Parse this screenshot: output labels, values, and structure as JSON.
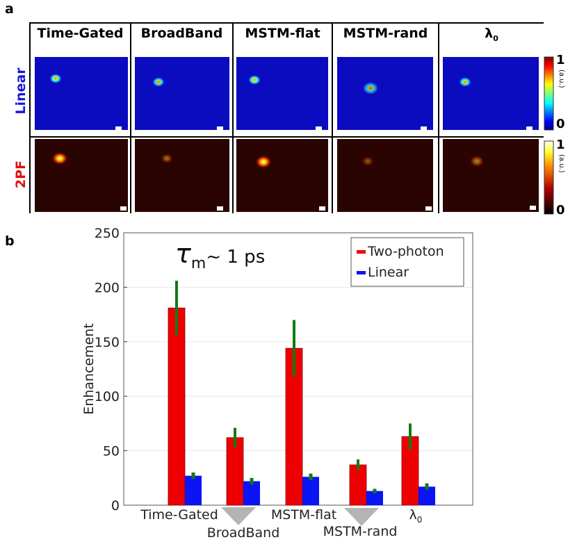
{
  "panel_a": {
    "letter": "a",
    "columns": [
      "Time-Gated",
      "BroadBand",
      "MSTM-flat",
      "MSTM-rand"
    ],
    "last_column_symbol": "λ",
    "last_column_subscript": "0",
    "rows": [
      {
        "label": "Linear",
        "color": "#1515e0",
        "tiles": [
          {
            "spot_intensity": 0.95,
            "spot_size": 1.0
          },
          {
            "spot_intensity": 0.85,
            "spot_size": 1.0
          },
          {
            "spot_intensity": 0.95,
            "spot_size": 1.0
          },
          {
            "spot_intensity": 0.7,
            "spot_size": 1.3
          },
          {
            "spot_intensity": 0.9,
            "spot_size": 1.0
          }
        ]
      },
      {
        "label": "2PF",
        "color": "#e01010",
        "tiles": [
          {
            "spot_intensity": 1.0,
            "spot_size": 1.3
          },
          {
            "spot_intensity": 0.45,
            "spot_size": 1.0
          },
          {
            "spot_intensity": 1.0,
            "spot_size": 1.3
          },
          {
            "spot_intensity": 0.35,
            "spot_size": 1.0
          },
          {
            "spot_intensity": 0.5,
            "spot_size": 1.2
          }
        ]
      }
    ],
    "colorbar": {
      "max_label": "1",
      "min_label": "0",
      "unit": "(a.u.)"
    }
  },
  "chart_data": {
    "type": "bar",
    "panel_letter": "b",
    "annotation_symbol": "τ",
    "annotation_sub": "m",
    "annotation_text": "~ 1 ps",
    "categories": [
      "Time-Gated",
      "BroadBand",
      "MSTM-flat",
      "MSTM-rand",
      "λ"
    ],
    "category_subscript_last": "0",
    "series": [
      {
        "name": "Two-photon",
        "color": "#ee0000",
        "values": [
          181,
          62,
          144,
          37,
          63
        ],
        "errors": [
          25,
          9,
          26,
          5,
          12
        ]
      },
      {
        "name": "Linear",
        "color": "#0a14f5",
        "values": [
          27,
          22,
          26,
          13,
          17
        ],
        "errors": [
          3,
          3,
          3,
          2,
          3
        ]
      }
    ],
    "error_color": "#137a13",
    "ylabel": "Enhancement",
    "xlabel": "",
    "ylim": [
      0,
      250
    ],
    "yticks": [
      0,
      50,
      100,
      150,
      200,
      250
    ],
    "grid": true,
    "legend_position": "top-right"
  }
}
